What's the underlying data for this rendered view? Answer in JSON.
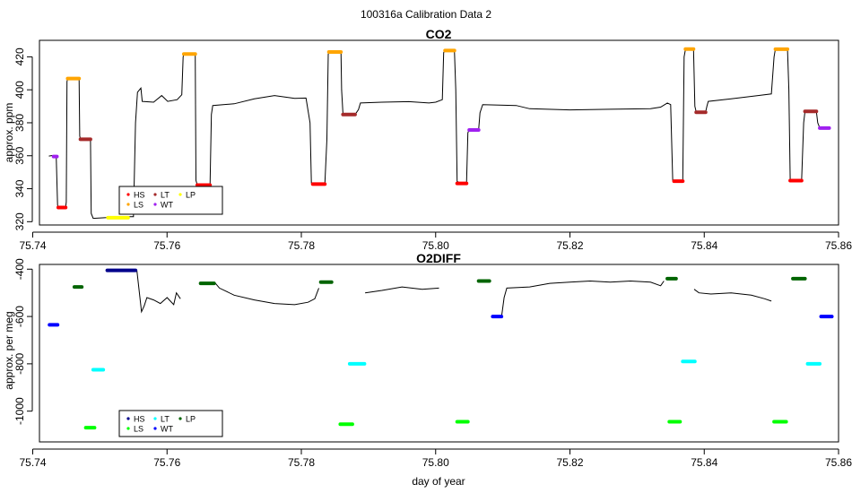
{
  "figure_title": "100316a   Calibration Data 2",
  "xlabel": "day of year",
  "chart_data": [
    {
      "type": "line",
      "title": "CO2",
      "ylabel": "approx. ppm",
      "xlim": [
        75.741,
        75.86
      ],
      "ylim": [
        318,
        430
      ],
      "xticks": [
        75.74,
        75.76,
        75.78,
        75.8,
        75.82,
        75.84,
        75.86
      ],
      "xtick_labels": [
        "75.74",
        "75.76",
        "75.78",
        "75.80",
        "75.82",
        "75.84",
        "75.86"
      ],
      "yticks": [
        320,
        340,
        360,
        380,
        400,
        420
      ],
      "ytick_labels": [
        "320",
        "340",
        "360",
        "380",
        "400",
        "420"
      ],
      "legend": {
        "placement": "bottom-left",
        "entries": [
          {
            "label": "HS",
            "color": "#ff0000"
          },
          {
            "label": "LT",
            "color": "#a52a2a"
          },
          {
            "label": "LP",
            "color": "#ffff00"
          },
          {
            "label": "LS",
            "color": "#ffa500"
          },
          {
            "label": "WT",
            "color": "#a020f0"
          }
        ]
      },
      "trace_color": "#000000",
      "trace": [
        [
          75.7424,
          359.8
        ],
        [
          75.743,
          360.2
        ],
        [
          75.7435,
          359.5
        ],
        [
          75.7437,
          330
        ],
        [
          75.7438,
          328.6
        ],
        [
          75.7449,
          328.8
        ],
        [
          75.745,
          332
        ],
        [
          75.7451,
          405
        ],
        [
          75.7452,
          406.8
        ],
        [
          75.7469,
          407.0
        ],
        [
          75.747,
          372
        ],
        [
          75.7471,
          370.0
        ],
        [
          75.7486,
          369.8
        ],
        [
          75.7487,
          325
        ],
        [
          75.749,
          322
        ],
        [
          75.751,
          322.5
        ],
        [
          75.753,
          323.0
        ],
        [
          75.755,
          323
        ],
        [
          75.7553,
          380
        ],
        [
          75.7556,
          398.5
        ],
        [
          75.7561,
          401
        ],
        [
          75.7563,
          393
        ],
        [
          75.758,
          392.5
        ],
        [
          75.7592,
          396.5
        ],
        [
          75.7601,
          393
        ],
        [
          75.7615,
          394
        ],
        [
          75.7622,
          397
        ],
        [
          75.7624,
          420
        ],
        [
          75.7625,
          421.7
        ],
        [
          75.7642,
          421.8
        ],
        [
          75.7643,
          345
        ],
        [
          75.7645,
          342.2
        ],
        [
          75.7664,
          342.1
        ],
        [
          75.7666,
          385
        ],
        [
          75.7668,
          390.5
        ],
        [
          75.77,
          391.5
        ],
        [
          75.773,
          394.5
        ],
        [
          75.776,
          396.5
        ],
        [
          75.779,
          394.8
        ],
        [
          75.7807,
          395
        ],
        [
          75.7813,
          380
        ],
        [
          75.7815,
          343.5
        ],
        [
          75.7835,
          342.6
        ],
        [
          75.7838,
          370
        ],
        [
          75.784,
          421.5
        ],
        [
          75.7841,
          422.8
        ],
        [
          75.7859,
          423.0
        ],
        [
          75.786,
          400
        ],
        [
          75.7862,
          385.5
        ],
        [
          75.788,
          385.0
        ],
        [
          75.7885,
          388
        ],
        [
          75.7888,
          392.0
        ],
        [
          75.792,
          392.5
        ],
        [
          75.796,
          392.8
        ],
        [
          75.799,
          392.0
        ],
        [
          75.8,
          392.5
        ],
        [
          75.801,
          394
        ],
        [
          75.8012,
          422.5
        ],
        [
          75.8014,
          424.0
        ],
        [
          75.8028,
          423.7
        ],
        [
          75.803,
          400
        ],
        [
          75.8032,
          344.5
        ],
        [
          75.8038,
          343.0
        ],
        [
          75.8046,
          343.2
        ],
        [
          75.8048,
          374
        ],
        [
          75.805,
          375.5
        ],
        [
          75.8064,
          375.8
        ],
        [
          75.8066,
          386
        ],
        [
          75.807,
          391.0
        ],
        [
          75.812,
          390.5
        ],
        [
          75.814,
          388.5
        ],
        [
          75.82,
          387.8
        ],
        [
          75.826,
          388.2
        ],
        [
          75.832,
          388.5
        ],
        [
          75.8335,
          389.5
        ],
        [
          75.8345,
          392
        ],
        [
          75.835,
          391.0
        ],
        [
          75.8353,
          345
        ],
        [
          75.8355,
          344.8
        ],
        [
          75.8368,
          344.5
        ],
        [
          75.837,
          420
        ],
        [
          75.8372,
          424.5
        ],
        [
          75.8384,
          424.8
        ],
        [
          75.8386,
          390
        ],
        [
          75.8388,
          386.5
        ],
        [
          75.8402,
          386.3
        ],
        [
          75.8404,
          390
        ],
        [
          75.8406,
          393.0
        ],
        [
          75.844,
          394.5
        ],
        [
          75.848,
          396.5
        ],
        [
          75.85,
          397.5
        ],
        [
          75.8504,
          420
        ],
        [
          75.8506,
          424.8
        ],
        [
          75.8524,
          424.5
        ],
        [
          75.8526,
          400
        ],
        [
          75.8528,
          345.0
        ],
        [
          75.8545,
          344.8
        ],
        [
          75.8548,
          380
        ],
        [
          75.855,
          387.0
        ],
        [
          75.8567,
          386.8
        ],
        [
          75.8569,
          380
        ],
        [
          75.8572,
          377.0
        ],
        [
          75.8586,
          376.8
        ]
      ],
      "segments": [
        {
          "name": "WT",
          "color": "#a020f0",
          "x": [
            75.7431,
            75.7436
          ],
          "y": 359.5
        },
        {
          "name": "HS",
          "color": "#ff0000",
          "x": [
            75.7438,
            75.7449
          ],
          "y": 328.6
        },
        {
          "name": "LS",
          "color": "#ffa500",
          "x": [
            75.7452,
            75.7469
          ],
          "y": 406.8
        },
        {
          "name": "LT",
          "color": "#a52a2a",
          "x": [
            75.7471,
            75.7486
          ],
          "y": 370.0
        },
        {
          "name": "LP",
          "color": "#ffff00",
          "x": [
            75.7512,
            75.7542
          ],
          "y": 322.4
        },
        {
          "name": "LS",
          "color": "#ffa500",
          "x": [
            75.7625,
            75.7642
          ],
          "y": 421.7
        },
        {
          "name": "HS",
          "color": "#ff0000",
          "x": [
            75.7645,
            75.7664
          ],
          "y": 342.2
        },
        {
          "name": "HS",
          "color": "#ff0000",
          "x": [
            75.7817,
            75.7835
          ],
          "y": 342.8
        },
        {
          "name": "LS",
          "color": "#ffa500",
          "x": [
            75.7841,
            75.7859
          ],
          "y": 422.9
        },
        {
          "name": "LT",
          "color": "#a52a2a",
          "x": [
            75.7862,
            75.788
          ],
          "y": 385.0
        },
        {
          "name": "LS",
          "color": "#ffa500",
          "x": [
            75.8014,
            75.8028
          ],
          "y": 423.8
        },
        {
          "name": "HS",
          "color": "#ff0000",
          "x": [
            75.8032,
            75.8046
          ],
          "y": 343.2
        },
        {
          "name": "WT",
          "color": "#a020f0",
          "x": [
            75.805,
            75.8064
          ],
          "y": 375.6
        },
        {
          "name": "HS",
          "color": "#ff0000",
          "x": [
            75.8355,
            75.8368
          ],
          "y": 344.6
        },
        {
          "name": "LS",
          "color": "#ffa500",
          "x": [
            75.8372,
            75.8384
          ],
          "y": 424.7
        },
        {
          "name": "LT",
          "color": "#a52a2a",
          "x": [
            75.8388,
            75.8402
          ],
          "y": 386.4
        },
        {
          "name": "LS",
          "color": "#ffa500",
          "x": [
            75.8506,
            75.8524
          ],
          "y": 424.6
        },
        {
          "name": "HS",
          "color": "#ff0000",
          "x": [
            75.8528,
            75.8545
          ],
          "y": 344.9
        },
        {
          "name": "LT",
          "color": "#a52a2a",
          "x": [
            75.855,
            75.8567
          ],
          "y": 386.9
        },
        {
          "name": "WT",
          "color": "#a020f0",
          "x": [
            75.8572,
            75.8586
          ],
          "y": 376.8
        }
      ]
    },
    {
      "type": "line",
      "title": "O2DIFF",
      "ylabel": "approx. per meg",
      "xlim": [
        75.741,
        75.86
      ],
      "ylim": [
        -1130,
        -380
      ],
      "xticks": [
        75.74,
        75.76,
        75.78,
        75.8,
        75.82,
        75.84,
        75.86
      ],
      "xtick_labels": [
        "75.74",
        "75.76",
        "75.78",
        "75.80",
        "75.82",
        "75.84",
        "75.86"
      ],
      "yticks": [
        -1000,
        -800,
        -600,
        -400
      ],
      "ytick_labels": [
        "-1000",
        "-800",
        "-600",
        "-400"
      ],
      "legend": {
        "placement": "bottom-left",
        "entries": [
          {
            "label": "HS",
            "color": "#00008b"
          },
          {
            "label": "LT",
            "color": "#00ffff"
          },
          {
            "label": "LP",
            "color": "#006400"
          },
          {
            "label": "LS",
            "color": "#00ff00"
          },
          {
            "label": "WT",
            "color": "#0000ff"
          }
        ]
      },
      "trace_color": "#000000",
      "traces": [
        [
          [
            75.7555,
            -405
          ],
          [
            75.7562,
            -580
          ],
          [
            75.7566,
            -555
          ],
          [
            75.757,
            -520
          ],
          [
            75.758,
            -530
          ],
          [
            75.759,
            -545
          ],
          [
            75.76,
            -520
          ],
          [
            75.761,
            -550
          ],
          [
            75.7614,
            -500
          ],
          [
            75.762,
            -525
          ]
        ],
        [
          [
            75.7672,
            -460
          ],
          [
            75.7678,
            -480
          ],
          [
            75.77,
            -510
          ],
          [
            75.773,
            -530
          ],
          [
            75.776,
            -545
          ],
          [
            75.779,
            -550
          ],
          [
            75.781,
            -540
          ],
          [
            75.782,
            -525
          ],
          [
            75.7826,
            -480
          ]
        ],
        [
          [
            75.7895,
            -500
          ],
          [
            75.792,
            -490
          ],
          [
            75.795,
            -475
          ],
          [
            75.798,
            -485
          ],
          [
            75.8005,
            -480
          ]
        ],
        [
          [
            75.8098,
            -605
          ],
          [
            75.8102,
            -520
          ],
          [
            75.8106,
            -480
          ],
          [
            75.814,
            -475
          ],
          [
            75.817,
            -460
          ],
          [
            75.82,
            -455
          ],
          [
            75.823,
            -450
          ],
          [
            75.826,
            -455
          ],
          [
            75.829,
            -450
          ],
          [
            75.832,
            -455
          ],
          [
            75.8335,
            -470
          ],
          [
            75.834,
            -450
          ]
        ],
        [
          [
            75.8385,
            -485
          ],
          [
            75.8392,
            -500
          ],
          [
            75.841,
            -505
          ],
          [
            75.844,
            -500
          ],
          [
            75.847,
            -510
          ],
          [
            75.849,
            -525
          ],
          [
            75.85,
            -535
          ]
        ]
      ],
      "segments": [
        {
          "name": "WT",
          "color": "#0000ff",
          "x": [
            75.7425,
            75.7437
          ],
          "y": -635
        },
        {
          "name": "LP",
          "color": "#006400",
          "x": [
            75.7462,
            75.7473
          ],
          "y": -475
        },
        {
          "name": "LS",
          "color": "#00ff00",
          "x": [
            75.7479,
            75.7492
          ],
          "y": -1070
        },
        {
          "name": "LT",
          "color": "#00ffff",
          "x": [
            75.749,
            75.7505
          ],
          "y": -825
        },
        {
          "name": "HS",
          "color": "#00008b",
          "x": [
            75.7511,
            75.7553
          ],
          "y": -405
        },
        {
          "name": "LP",
          "color": "#006400",
          "x": [
            75.765,
            75.767
          ],
          "y": -460
        },
        {
          "name": "LP",
          "color": "#006400",
          "x": [
            75.7829,
            75.7845
          ],
          "y": -455
        },
        {
          "name": "LS",
          "color": "#00ff00",
          "x": [
            75.7858,
            75.7876
          ],
          "y": -1055
        },
        {
          "name": "LT",
          "color": "#00ffff",
          "x": [
            75.7872,
            75.7894
          ],
          "y": -800
        },
        {
          "name": "LS",
          "color": "#00ff00",
          "x": [
            75.8032,
            75.8048
          ],
          "y": -1045
        },
        {
          "name": "LP",
          "color": "#006400",
          "x": [
            75.8064,
            75.808
          ],
          "y": -450
        },
        {
          "name": "WT",
          "color": "#0000ff",
          "x": [
            75.8085,
            75.8098
          ],
          "y": -600
        },
        {
          "name": "LP",
          "color": "#006400",
          "x": [
            75.8345,
            75.8358
          ],
          "y": -440
        },
        {
          "name": "LS",
          "color": "#00ff00",
          "x": [
            75.8348,
            75.8364
          ],
          "y": -1045
        },
        {
          "name": "LT",
          "color": "#00ffff",
          "x": [
            75.8368,
            75.8386
          ],
          "y": -790
        },
        {
          "name": "LS",
          "color": "#00ff00",
          "x": [
            75.8504,
            75.8522
          ],
          "y": -1045
        },
        {
          "name": "LP",
          "color": "#006400",
          "x": [
            75.8532,
            75.855
          ],
          "y": -440
        },
        {
          "name": "LT",
          "color": "#00ffff",
          "x": [
            75.8554,
            75.8572
          ],
          "y": -800
        },
        {
          "name": "WT",
          "color": "#0000ff",
          "x": [
            75.8574,
            75.859
          ],
          "y": -600
        }
      ]
    }
  ]
}
